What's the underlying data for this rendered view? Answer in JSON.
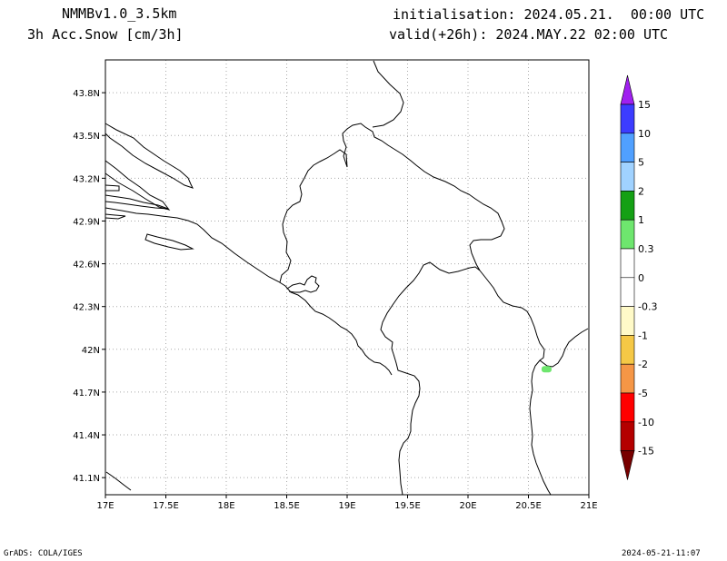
{
  "header": {
    "model": "NMMBv1.0_3.5km",
    "variable": "3h Acc.Snow [cm/3h]",
    "init": "initialisation: 2024.05.21.  00:00 UTC",
    "valid": "valid(+26h): 2024.MAY.22 02:00 UTC"
  },
  "map": {
    "lon_range": [
      17.0,
      21.0
    ],
    "lat_range": [
      40.98,
      44.03
    ],
    "grid": true,
    "lon_ticks": [
      "17E",
      "17.5E",
      "18E",
      "18.5E",
      "19E",
      "19.5E",
      "20E",
      "20.5E",
      "21E"
    ],
    "lat_ticks": [
      "43.8N",
      "43.5N",
      "43.2N",
      "42.9N",
      "42.6N",
      "42.3N",
      "42N",
      "41.7N",
      "41.4N",
      "41.1N"
    ],
    "snow_patch": {
      "lon": 20.65,
      "lat": 41.86,
      "color": "#6ee66e"
    }
  },
  "colorbar": {
    "labels": [
      "15",
      "10",
      "5",
      "2",
      "1",
      "0.3",
      "0",
      "-0.3",
      "-1",
      "-2",
      "-5",
      "-10",
      "-15"
    ],
    "colors": [
      "#a020f0",
      "#3c3cff",
      "#50a0ff",
      "#a0d2ff",
      "#14a014",
      "#6ee66e",
      "#ffffff",
      "#ffffff",
      "#fffac8",
      "#f5c846",
      "#f59646",
      "#ff0000",
      "#b40000",
      "#780000"
    ]
  },
  "footer": {
    "left": "GrADS: COLA/IGES",
    "right": "2024-05-21-11:07"
  }
}
